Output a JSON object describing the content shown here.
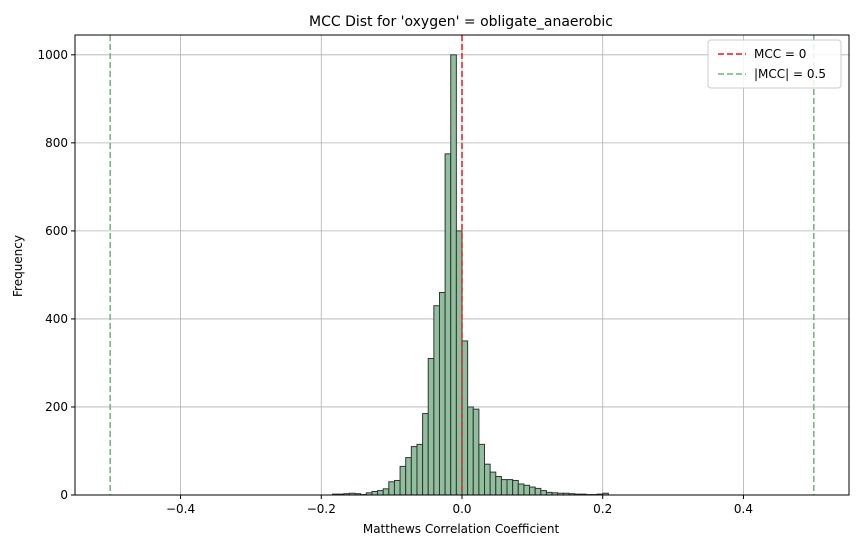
{
  "chart_data": {
    "type": "bar",
    "title": "MCC Dist for 'oxygen' = obligate_anaerobic",
    "xlabel": "Matthews Correlation Coefficient",
    "ylabel": "Frequency",
    "xlim": [
      -0.55,
      0.55
    ],
    "ylim": [
      0,
      1045
    ],
    "xticks": [
      -0.4,
      -0.2,
      0.0,
      0.2,
      0.4
    ],
    "xtick_labels": [
      "−0.4",
      "−0.2",
      "0.0",
      "0.2",
      "0.4"
    ],
    "yticks": [
      0,
      200,
      400,
      600,
      800,
      1000
    ],
    "ytick_labels": [
      "0",
      "200",
      "400",
      "600",
      "800",
      "1000"
    ],
    "grid": true,
    "bin_width": 0.008,
    "bins": {
      "x": [
        -0.184,
        -0.176,
        -0.168,
        -0.16,
        -0.152,
        -0.144,
        -0.136,
        -0.128,
        -0.12,
        -0.112,
        -0.104,
        -0.096,
        -0.088,
        -0.08,
        -0.072,
        -0.064,
        -0.056,
        -0.048,
        -0.04,
        -0.032,
        -0.024,
        -0.016,
        -0.008,
        0.0,
        0.008,
        0.016,
        0.024,
        0.032,
        0.04,
        0.048,
        0.056,
        0.064,
        0.072,
        0.08,
        0.088,
        0.096,
        0.104,
        0.112,
        0.12,
        0.128,
        0.136,
        0.144,
        0.152,
        0.16,
        0.168,
        0.176,
        0.184,
        0.192,
        0.2
      ],
      "values": [
        2,
        2,
        3,
        4,
        3,
        1,
        5,
        8,
        10,
        14,
        30,
        33,
        65,
        85,
        110,
        115,
        185,
        310,
        430,
        460,
        775,
        1000,
        600,
        350,
        200,
        195,
        115,
        70,
        52,
        42,
        35,
        35,
        33,
        25,
        22,
        18,
        15,
        10,
        6,
        5,
        4,
        4,
        3,
        2,
        2,
        1,
        1,
        2,
        4
      ]
    },
    "bar_fill": "#8fbf9c",
    "bar_edge": "#333333",
    "reference_lines": [
      {
        "x": 0.0,
        "color": "#e31a1c",
        "label": "MCC = 0"
      },
      {
        "x": -0.5,
        "color": "#6fb37f",
        "label": "|MCC| = 0.5"
      },
      {
        "x": 0.5,
        "color": "#6fb37f",
        "label": "|MCC| = 0.5"
      }
    ],
    "legend": {
      "placement": "top-right",
      "entries": [
        {
          "label": "MCC = 0",
          "color": "#e31a1c"
        },
        {
          "label": "|MCC| = 0.5",
          "color": "#6fb37f"
        }
      ]
    }
  }
}
